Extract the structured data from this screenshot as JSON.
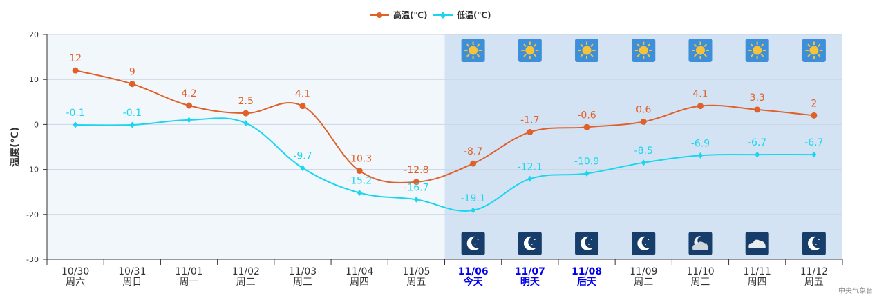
{
  "chart_data": {
    "type": "line",
    "title": "",
    "xlabel": "",
    "ylabel": "温度(℃)",
    "ylim": [
      -30,
      20
    ],
    "yticks": [
      20,
      10,
      0,
      -10,
      -20,
      -30
    ],
    "grid": true,
    "legend_position": "top-center",
    "forecast_start_index": 6,
    "categories": [
      {
        "date": "10/30",
        "day": "周六",
        "highlight": false
      },
      {
        "date": "10/31",
        "day": "周日",
        "highlight": false
      },
      {
        "date": "11/01",
        "day": "周一",
        "highlight": false
      },
      {
        "date": "11/02",
        "day": "周二",
        "highlight": false
      },
      {
        "date": "11/03",
        "day": "周三",
        "highlight": false
      },
      {
        "date": "11/04",
        "day": "周四",
        "highlight": false
      },
      {
        "date": "11/05",
        "day": "周五",
        "highlight": false
      },
      {
        "date": "11/06",
        "day": "今天",
        "highlight": true
      },
      {
        "date": "11/07",
        "day": "明天",
        "highlight": true
      },
      {
        "date": "11/08",
        "day": "后天",
        "highlight": true
      },
      {
        "date": "11/09",
        "day": "周二",
        "highlight": false
      },
      {
        "date": "11/10",
        "day": "周三",
        "highlight": false
      },
      {
        "date": "11/11",
        "day": "周四",
        "highlight": false
      },
      {
        "date": "11/12",
        "day": "周五",
        "highlight": false
      }
    ],
    "series": [
      {
        "name": "高温(℃)",
        "color": "#e0602a",
        "marker": "circle",
        "values": [
          12,
          9,
          4.2,
          2.5,
          4.1,
          -10.3,
          -12.8,
          -8.7,
          -1.7,
          -0.6,
          0.6,
          4.1,
          3.3,
          2
        ]
      },
      {
        "name": "低温(℃)",
        "color": "#19d6ee",
        "marker": "diamond",
        "values": [
          -0.1,
          -0.1,
          1,
          0.3,
          -9.7,
          -15.2,
          -16.7,
          -19.1,
          -12.1,
          -10.9,
          -8.5,
          -6.9,
          -6.7,
          -6.7
        ]
      }
    ],
    "data_labels": {
      "high": [
        "12",
        "9",
        "4.2",
        "2.5",
        "4.1",
        "-10.3",
        "-12.8",
        "-8.7",
        "-1.7",
        "-0.6",
        "0.6",
        "4.1",
        "3.3",
        "2"
      ],
      "low": [
        "-0.1",
        "-0.1",
        "",
        "",
        "-9.7",
        "-15.2",
        "-16.7",
        "-19.1",
        "-12.1",
        "-10.9",
        "-8.5",
        "-6.9",
        "-6.7",
        "-6.7"
      ]
    },
    "day_icons": [
      "sun-icon",
      "sun-icon",
      "sun-icon",
      "sun-icon",
      "sun-icon",
      "sun-icon",
      "sun-icon"
    ],
    "night_icons": [
      "moon-icon",
      "moon-icon",
      "moon-icon",
      "moon-icon",
      "cloud-moon-icon",
      "cloud-icon",
      "moon-icon"
    ]
  },
  "colors": {
    "past_bg": "#f2f7fc",
    "forecast_bg": "#d4e3f4",
    "grid": "#c9d6e4",
    "axis": "#333333"
  },
  "credit": "中央气象台"
}
